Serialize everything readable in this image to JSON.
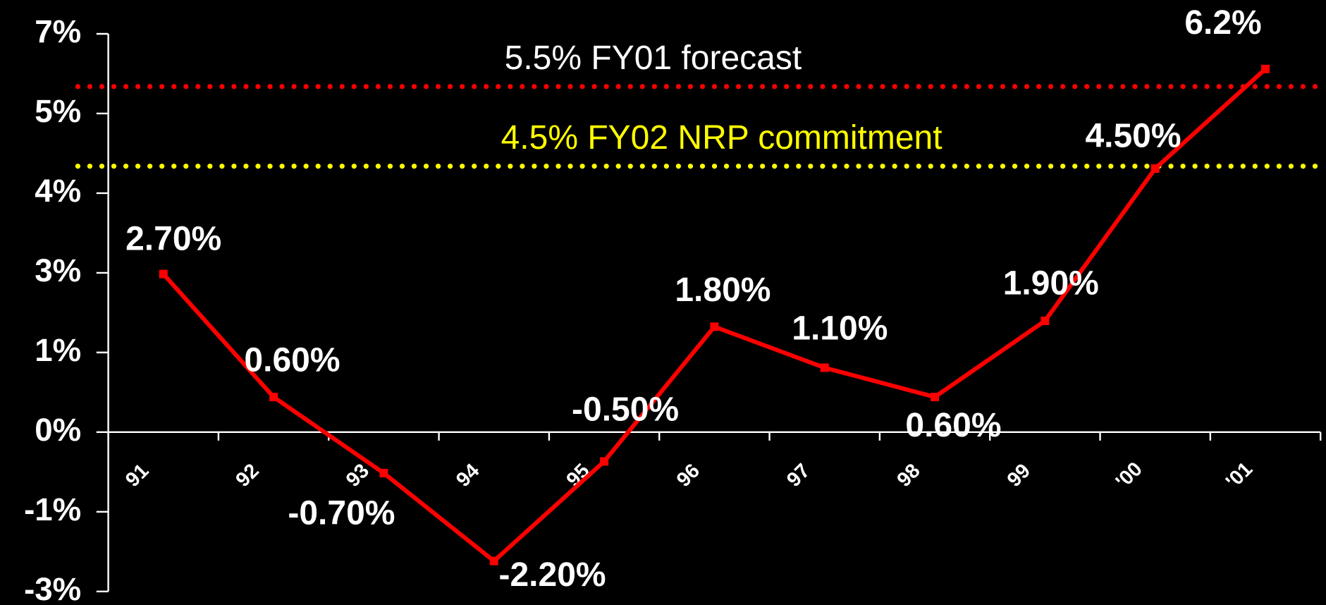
{
  "chart_data": {
    "type": "line",
    "categories": [
      "91",
      "92",
      "93",
      "94",
      "95",
      "96",
      "97",
      "98",
      "99",
      "'00",
      "'01"
    ],
    "values": [
      2.7,
      0.6,
      -0.7,
      -2.2,
      -0.5,
      1.8,
      1.1,
      0.6,
      1.9,
      4.5,
      6.2
    ],
    "value_labels": [
      "2.70%",
      "0.60%",
      "-0.70%",
      "-2.20%",
      "-0.50%",
      "1.80%",
      "1.10%",
      "0.60%",
      "1.90%",
      "4.50%",
      "6.2%"
    ],
    "color": "#ff0000",
    "ylim": [
      -2.72,
      6.8
    ],
    "yticks": [
      {
        "value": 6.8,
        "label": "7%"
      },
      {
        "value": 5.44,
        "label": "5%"
      },
      {
        "value": 4.08,
        "label": "4%"
      },
      {
        "value": 2.72,
        "label": "3%"
      },
      {
        "value": 1.36,
        "label": "1%"
      },
      {
        "value": 0,
        "label": "0%"
      },
      {
        "value": -1.36,
        "label": "-1%"
      },
      {
        "value": -2.72,
        "label": "-3%"
      }
    ],
    "annotations": [
      {
        "text": "5.5% FY01 forecast",
        "value": 5.9,
        "color": "#ff0000",
        "text_color": "#ffffff"
      },
      {
        "text": "4.5% FY02 NRP commitment",
        "value": 4.54,
        "color": "#ffff00",
        "text_color": "#ffff00"
      }
    ]
  }
}
